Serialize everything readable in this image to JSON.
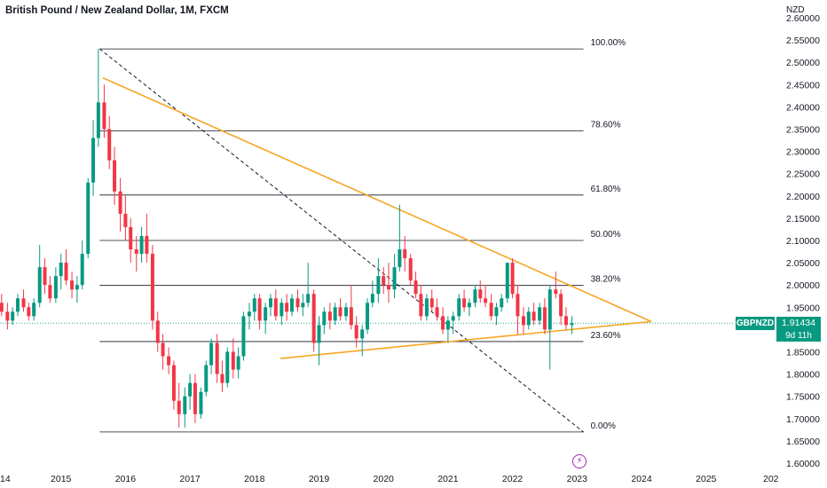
{
  "header": {
    "title": "British Pound / New Zealand Dollar, 1M, FXCM",
    "currency": "NZD"
  },
  "price_badge": {
    "symbol": "GBPNZD",
    "price": "1.91434",
    "countdown": "9d 11h"
  },
  "icons": {
    "flash": "lightning-icon"
  },
  "colors": {
    "up": "#089981",
    "down": "#f23645",
    "trendline": "#f5a623",
    "fib": "#131722",
    "badge": "#089981",
    "event": "#9c27b0"
  },
  "chart_data": {
    "type": "candlestick",
    "title": "British Pound / New Zealand Dollar, 1M, FXCM",
    "ylim": [
      1.6,
      2.6
    ],
    "y_ticks": [
      "1.60000",
      "1.65000",
      "1.70000",
      "1.75000",
      "1.80000",
      "1.85000",
      "1.90000",
      "1.95000",
      "2.00000",
      "2.05000",
      "2.10000",
      "2.15000",
      "2.20000",
      "2.25000",
      "2.30000",
      "2.35000",
      "2.40000",
      "2.45000",
      "2.50000",
      "2.55000",
      "2.60000"
    ],
    "x_ticks": [
      "14",
      "2015",
      "2016",
      "2017",
      "2018",
      "2019",
      "2020",
      "2021",
      "2022",
      "2023",
      "2024",
      "2025",
      "202"
    ],
    "x_range": [
      2014.0,
      2026.1
    ],
    "last_price": 1.91434,
    "fibonacci": {
      "start": {
        "date": 2015.6,
        "price": 2.53
      },
      "end": {
        "date": 2023.1,
        "price": 1.67
      },
      "levels": [
        {
          "label": "100.00%",
          "price": 2.53
        },
        {
          "label": "78.60%",
          "price": 2.346
        },
        {
          "label": "61.80%",
          "price": 2.202
        },
        {
          "label": "50.00%",
          "price": 2.1
        },
        {
          "label": "38.20%",
          "price": 1.999
        },
        {
          "label": "23.60%",
          "price": 1.873
        },
        {
          "label": "0.00%",
          "price": 1.67
        }
      ]
    },
    "trendlines": [
      {
        "name": "",
        "from": {
          "date": 2015.65,
          "price": 2.465
        },
        "to": {
          "date": 2024.15,
          "price": 1.918
        }
      },
      {
        "name": "",
        "from": {
          "date": 2018.4,
          "price": 1.835
        },
        "to": {
          "date": 2024.15,
          "price": 1.918
        }
      }
    ],
    "candles": [
      {
        "date": 2014.0,
        "o": 1.95,
        "h": 1.97,
        "l": 1.92,
        "c": 1.96
      },
      {
        "date": 2014.08,
        "o": 1.96,
        "h": 1.98,
        "l": 1.93,
        "c": 1.94
      },
      {
        "date": 2014.17,
        "o": 1.94,
        "h": 1.96,
        "l": 1.9,
        "c": 1.92
      },
      {
        "date": 2014.25,
        "o": 1.92,
        "h": 1.95,
        "l": 1.91,
        "c": 1.94
      },
      {
        "date": 2014.33,
        "o": 1.94,
        "h": 1.98,
        "l": 1.93,
        "c": 1.97
      },
      {
        "date": 2014.42,
        "o": 1.97,
        "h": 1.99,
        "l": 1.94,
        "c": 1.95
      },
      {
        "date": 2014.5,
        "o": 1.95,
        "h": 1.96,
        "l": 1.92,
        "c": 1.93
      },
      {
        "date": 2014.58,
        "o": 1.93,
        "h": 1.97,
        "l": 1.92,
        "c": 1.96
      },
      {
        "date": 2014.67,
        "o": 1.96,
        "h": 2.09,
        "l": 1.95,
        "c": 2.04
      },
      {
        "date": 2014.75,
        "o": 2.04,
        "h": 2.06,
        "l": 1.98,
        "c": 2.0
      },
      {
        "date": 2014.83,
        "o": 2.0,
        "h": 2.02,
        "l": 1.96,
        "c": 1.97
      },
      {
        "date": 2014.92,
        "o": 1.97,
        "h": 2.04,
        "l": 1.96,
        "c": 2.02
      },
      {
        "date": 2015.0,
        "o": 2.02,
        "h": 2.07,
        "l": 1.99,
        "c": 2.05
      },
      {
        "date": 2015.08,
        "o": 2.05,
        "h": 2.08,
        "l": 2.0,
        "c": 2.01
      },
      {
        "date": 2015.17,
        "o": 2.01,
        "h": 2.03,
        "l": 1.97,
        "c": 1.99
      },
      {
        "date": 2015.25,
        "o": 1.99,
        "h": 2.02,
        "l": 1.96,
        "c": 2.0
      },
      {
        "date": 2015.33,
        "o": 2.0,
        "h": 2.1,
        "l": 1.99,
        "c": 2.07
      },
      {
        "date": 2015.42,
        "o": 2.07,
        "h": 2.24,
        "l": 2.06,
        "c": 2.23
      },
      {
        "date": 2015.5,
        "o": 2.23,
        "h": 2.37,
        "l": 2.2,
        "c": 2.33
      },
      {
        "date": 2015.58,
        "o": 2.33,
        "h": 2.53,
        "l": 2.31,
        "c": 2.41
      },
      {
        "date": 2015.67,
        "o": 2.41,
        "h": 2.45,
        "l": 2.33,
        "c": 2.35
      },
      {
        "date": 2015.75,
        "o": 2.35,
        "h": 2.38,
        "l": 2.26,
        "c": 2.28
      },
      {
        "date": 2015.83,
        "o": 2.28,
        "h": 2.31,
        "l": 2.18,
        "c": 2.21
      },
      {
        "date": 2015.92,
        "o": 2.21,
        "h": 2.24,
        "l": 2.12,
        "c": 2.16
      },
      {
        "date": 2016.0,
        "o": 2.16,
        "h": 2.2,
        "l": 2.1,
        "c": 2.13
      },
      {
        "date": 2016.08,
        "o": 2.13,
        "h": 2.15,
        "l": 2.05,
        "c": 2.08
      },
      {
        "date": 2016.17,
        "o": 2.08,
        "h": 2.11,
        "l": 2.03,
        "c": 2.07
      },
      {
        "date": 2016.25,
        "o": 2.07,
        "h": 2.13,
        "l": 2.05,
        "c": 2.11
      },
      {
        "date": 2016.33,
        "o": 2.11,
        "h": 2.16,
        "l": 2.05,
        "c": 2.07
      },
      {
        "date": 2016.42,
        "o": 2.07,
        "h": 2.09,
        "l": 1.9,
        "c": 1.92
      },
      {
        "date": 2016.5,
        "o": 1.92,
        "h": 1.94,
        "l": 1.85,
        "c": 1.87
      },
      {
        "date": 2016.58,
        "o": 1.87,
        "h": 1.89,
        "l": 1.81,
        "c": 1.84
      },
      {
        "date": 2016.67,
        "o": 1.84,
        "h": 1.86,
        "l": 1.8,
        "c": 1.82
      },
      {
        "date": 2016.75,
        "o": 1.82,
        "h": 1.83,
        "l": 1.72,
        "c": 1.74
      },
      {
        "date": 2016.83,
        "o": 1.74,
        "h": 1.78,
        "l": 1.68,
        "c": 1.71
      },
      {
        "date": 2016.92,
        "o": 1.71,
        "h": 1.77,
        "l": 1.68,
        "c": 1.75
      },
      {
        "date": 2017.0,
        "o": 1.75,
        "h": 1.8,
        "l": 1.72,
        "c": 1.78
      },
      {
        "date": 2017.08,
        "o": 1.78,
        "h": 1.8,
        "l": 1.69,
        "c": 1.71
      },
      {
        "date": 2017.17,
        "o": 1.71,
        "h": 1.77,
        "l": 1.7,
        "c": 1.76
      },
      {
        "date": 2017.25,
        "o": 1.76,
        "h": 1.83,
        "l": 1.75,
        "c": 1.82
      },
      {
        "date": 2017.33,
        "o": 1.82,
        "h": 1.88,
        "l": 1.8,
        "c": 1.87
      },
      {
        "date": 2017.42,
        "o": 1.87,
        "h": 1.89,
        "l": 1.78,
        "c": 1.8
      },
      {
        "date": 2017.5,
        "o": 1.8,
        "h": 1.83,
        "l": 1.76,
        "c": 1.78
      },
      {
        "date": 2017.58,
        "o": 1.78,
        "h": 1.86,
        "l": 1.77,
        "c": 1.85
      },
      {
        "date": 2017.67,
        "o": 1.85,
        "h": 1.88,
        "l": 1.79,
        "c": 1.81
      },
      {
        "date": 2017.75,
        "o": 1.81,
        "h": 1.86,
        "l": 1.79,
        "c": 1.84
      },
      {
        "date": 2017.83,
        "o": 1.84,
        "h": 1.94,
        "l": 1.83,
        "c": 1.93
      },
      {
        "date": 2017.92,
        "o": 1.93,
        "h": 1.96,
        "l": 1.9,
        "c": 1.94
      },
      {
        "date": 2018.0,
        "o": 1.94,
        "h": 1.98,
        "l": 1.92,
        "c": 1.97
      },
      {
        "date": 2018.08,
        "o": 1.97,
        "h": 1.98,
        "l": 1.9,
        "c": 1.92
      },
      {
        "date": 2018.17,
        "o": 1.92,
        "h": 1.96,
        "l": 1.89,
        "c": 1.95
      },
      {
        "date": 2018.25,
        "o": 1.95,
        "h": 1.98,
        "l": 1.93,
        "c": 1.97
      },
      {
        "date": 2018.33,
        "o": 1.97,
        "h": 1.99,
        "l": 1.92,
        "c": 1.93
      },
      {
        "date": 2018.42,
        "o": 1.93,
        "h": 1.97,
        "l": 1.91,
        "c": 1.96
      },
      {
        "date": 2018.5,
        "o": 1.96,
        "h": 1.98,
        "l": 1.92,
        "c": 1.94
      },
      {
        "date": 2018.58,
        "o": 1.94,
        "h": 1.98,
        "l": 1.93,
        "c": 1.97
      },
      {
        "date": 2018.67,
        "o": 1.97,
        "h": 1.99,
        "l": 1.94,
        "c": 1.95
      },
      {
        "date": 2018.75,
        "o": 1.95,
        "h": 1.98,
        "l": 1.93,
        "c": 1.96
      },
      {
        "date": 2018.83,
        "o": 1.96,
        "h": 2.05,
        "l": 1.95,
        "c": 1.98
      },
      {
        "date": 2018.92,
        "o": 1.98,
        "h": 1.99,
        "l": 1.85,
        "c": 1.87
      },
      {
        "date": 2019.0,
        "o": 1.87,
        "h": 1.93,
        "l": 1.82,
        "c": 1.91
      },
      {
        "date": 2019.08,
        "o": 1.91,
        "h": 1.95,
        "l": 1.89,
        "c": 1.94
      },
      {
        "date": 2019.17,
        "o": 1.94,
        "h": 1.96,
        "l": 1.9,
        "c": 1.92
      },
      {
        "date": 2019.25,
        "o": 1.92,
        "h": 1.96,
        "l": 1.91,
        "c": 1.95
      },
      {
        "date": 2019.33,
        "o": 1.95,
        "h": 1.97,
        "l": 1.92,
        "c": 1.93
      },
      {
        "date": 2019.42,
        "o": 1.93,
        "h": 1.96,
        "l": 1.92,
        "c": 1.95
      },
      {
        "date": 2019.5,
        "o": 1.95,
        "h": 2.0,
        "l": 1.9,
        "c": 1.91
      },
      {
        "date": 2019.58,
        "o": 1.91,
        "h": 1.93,
        "l": 1.86,
        "c": 1.88
      },
      {
        "date": 2019.67,
        "o": 1.88,
        "h": 1.91,
        "l": 1.84,
        "c": 1.9
      },
      {
        "date": 2019.75,
        "o": 1.9,
        "h": 1.97,
        "l": 1.89,
        "c": 1.96
      },
      {
        "date": 2019.83,
        "o": 1.96,
        "h": 2.01,
        "l": 1.95,
        "c": 1.98
      },
      {
        "date": 2019.92,
        "o": 1.98,
        "h": 2.06,
        "l": 1.96,
        "c": 2.02
      },
      {
        "date": 2020.0,
        "o": 2.02,
        "h": 2.04,
        "l": 1.98,
        "c": 2.0
      },
      {
        "date": 2020.08,
        "o": 2.0,
        "h": 2.05,
        "l": 1.96,
        "c": 1.99
      },
      {
        "date": 2020.17,
        "o": 1.99,
        "h": 2.07,
        "l": 1.97,
        "c": 2.04
      },
      {
        "date": 2020.25,
        "o": 2.04,
        "h": 2.18,
        "l": 2.03,
        "c": 2.08
      },
      {
        "date": 2020.33,
        "o": 2.08,
        "h": 2.11,
        "l": 2.03,
        "c": 2.06
      },
      {
        "date": 2020.42,
        "o": 2.06,
        "h": 2.07,
        "l": 2.0,
        "c": 2.01
      },
      {
        "date": 2020.5,
        "o": 2.01,
        "h": 2.03,
        "l": 1.97,
        "c": 1.98
      },
      {
        "date": 2020.58,
        "o": 1.98,
        "h": 2.0,
        "l": 1.92,
        "c": 1.93
      },
      {
        "date": 2020.67,
        "o": 1.93,
        "h": 1.98,
        "l": 1.92,
        "c": 1.97
      },
      {
        "date": 2020.75,
        "o": 1.97,
        "h": 1.99,
        "l": 1.94,
        "c": 1.95
      },
      {
        "date": 2020.83,
        "o": 1.95,
        "h": 1.97,
        "l": 1.92,
        "c": 1.93
      },
      {
        "date": 2020.92,
        "o": 1.93,
        "h": 1.95,
        "l": 1.89,
        "c": 1.9
      },
      {
        "date": 2021.0,
        "o": 1.9,
        "h": 1.93,
        "l": 1.87,
        "c": 1.92
      },
      {
        "date": 2021.08,
        "o": 1.92,
        "h": 1.94,
        "l": 1.89,
        "c": 1.93
      },
      {
        "date": 2021.17,
        "o": 1.93,
        "h": 1.98,
        "l": 1.92,
        "c": 1.97
      },
      {
        "date": 2021.25,
        "o": 1.97,
        "h": 1.99,
        "l": 1.94,
        "c": 1.95
      },
      {
        "date": 2021.33,
        "o": 1.95,
        "h": 1.97,
        "l": 1.93,
        "c": 1.96
      },
      {
        "date": 2021.42,
        "o": 1.96,
        "h": 2.0,
        "l": 1.95,
        "c": 1.99
      },
      {
        "date": 2021.5,
        "o": 1.99,
        "h": 2.01,
        "l": 1.96,
        "c": 1.97
      },
      {
        "date": 2021.58,
        "o": 1.97,
        "h": 2.0,
        "l": 1.95,
        "c": 1.96
      },
      {
        "date": 2021.67,
        "o": 1.96,
        "h": 1.98,
        "l": 1.92,
        "c": 1.93
      },
      {
        "date": 2021.75,
        "o": 1.93,
        "h": 1.96,
        "l": 1.91,
        "c": 1.95
      },
      {
        "date": 2021.83,
        "o": 1.95,
        "h": 1.98,
        "l": 1.94,
        "c": 1.97
      },
      {
        "date": 2021.92,
        "o": 1.97,
        "h": 2.05,
        "l": 1.96,
        "c": 2.05
      },
      {
        "date": 2022.0,
        "o": 2.05,
        "h": 2.06,
        "l": 1.97,
        "c": 1.98
      },
      {
        "date": 2022.08,
        "o": 1.98,
        "h": 2.0,
        "l": 1.89,
        "c": 1.93
      },
      {
        "date": 2022.17,
        "o": 1.93,
        "h": 1.95,
        "l": 1.89,
        "c": 1.91
      },
      {
        "date": 2022.25,
        "o": 1.91,
        "h": 1.95,
        "l": 1.9,
        "c": 1.94
      },
      {
        "date": 2022.33,
        "o": 1.94,
        "h": 1.96,
        "l": 1.91,
        "c": 1.92
      },
      {
        "date": 2022.42,
        "o": 1.92,
        "h": 1.96,
        "l": 1.91,
        "c": 1.95
      },
      {
        "date": 2022.5,
        "o": 1.95,
        "h": 1.97,
        "l": 1.89,
        "c": 1.9
      },
      {
        "date": 2022.58,
        "o": 1.9,
        "h": 2.0,
        "l": 1.81,
        "c": 1.99
      },
      {
        "date": 2022.67,
        "o": 1.99,
        "h": 2.03,
        "l": 1.97,
        "c": 1.98
      },
      {
        "date": 2022.75,
        "o": 1.98,
        "h": 1.99,
        "l": 1.91,
        "c": 1.93
      },
      {
        "date": 2022.83,
        "o": 1.93,
        "h": 1.95,
        "l": 1.9,
        "c": 1.91
      },
      {
        "date": 2022.92,
        "o": 1.91,
        "h": 1.93,
        "l": 1.89,
        "c": 1.914
      }
    ]
  }
}
